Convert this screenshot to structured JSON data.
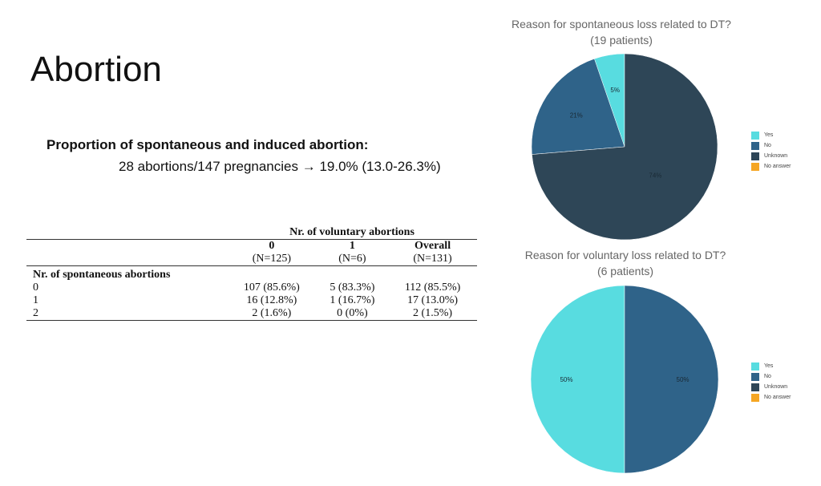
{
  "slide": {
    "title": "Abortion",
    "subtitle": "Proportion of spontaneous and induced abortion:",
    "summary": "28 abortions/147 pregnancies → 19.0% (13.0-26.3%)"
  },
  "table": {
    "group_header": "Nr. of voluntary abortions",
    "columns": [
      {
        "label": "0",
        "n": "(N=125)"
      },
      {
        "label": "1",
        "n": "(N=6)"
      },
      {
        "label": "Overall",
        "n": "(N=131)"
      }
    ],
    "row_group": "Nr. of spontaneous abortions",
    "rows": [
      {
        "label": "0",
        "cells": [
          "107 (85.6%)",
          "5 (83.3%)",
          "112 (85.5%)"
        ]
      },
      {
        "label": "1",
        "cells": [
          "16 (12.8%)",
          "1 (16.7%)",
          "17 (13.0%)"
        ]
      },
      {
        "label": "2",
        "cells": [
          "2 (1.6%)",
          "0 (0%)",
          "2 (1.5%)"
        ]
      }
    ]
  },
  "chart_data": [
    {
      "type": "pie",
      "title": "Reason for spontaneous loss related to DT?",
      "subtitle": "(19 patients)",
      "categories": [
        "Yes",
        "No",
        "Unknown",
        "No answer"
      ],
      "values": [
        1,
        4,
        14,
        0
      ],
      "labels": [
        "5%",
        "21%",
        "74%",
        ""
      ],
      "legend": "right"
    },
    {
      "type": "pie",
      "title": "Reason for voluntary loss related to DT?",
      "subtitle": "(6 patients)",
      "categories": [
        "Yes",
        "No",
        "Unknown",
        "No answer"
      ],
      "values": [
        3,
        3,
        0,
        0
      ],
      "labels": [
        "50%",
        "50%",
        "",
        ""
      ],
      "legend": "right"
    }
  ],
  "colors": {
    "Yes": "#58DCE0",
    "No": "#2F6389",
    "Unknown": "#2E4657",
    "No answer": "#F5A623"
  }
}
